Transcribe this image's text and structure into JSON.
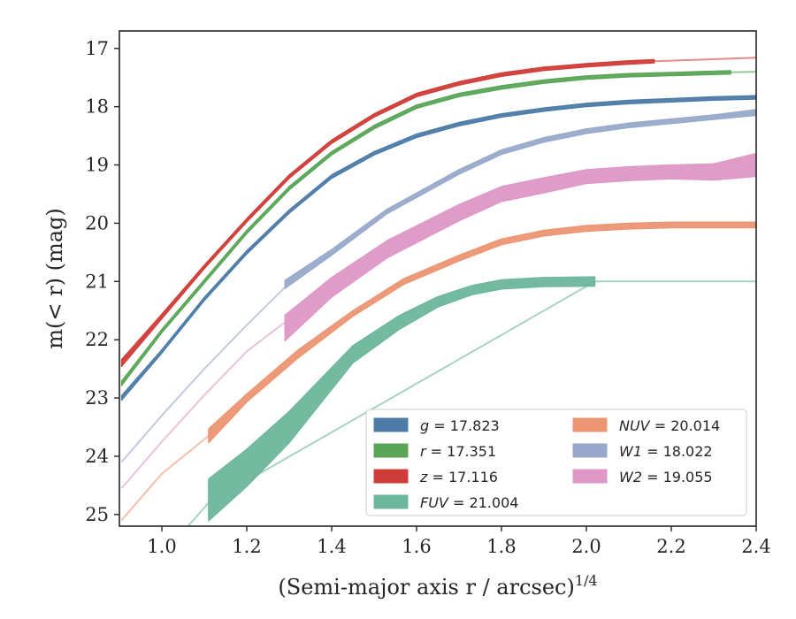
{
  "chart_data": {
    "type": "area",
    "xlabel": "(Semi-major axis r / arcsec)",
    "xlabel_sup": "1/4",
    "ylabel": "m(< r) (mag)",
    "xlim": [
      0.9,
      2.4
    ],
    "ylim": [
      25.2,
      16.7
    ],
    "y_inverted": true,
    "grid": false,
    "legend_position": "lower-right",
    "x_ticks": [
      {
        "value": 1.0,
        "label": "1.0"
      },
      {
        "value": 1.2,
        "label": "1.2"
      },
      {
        "value": 1.4,
        "label": "1.4"
      },
      {
        "value": 1.6,
        "label": "1.6"
      },
      {
        "value": 1.8,
        "label": "1.8"
      },
      {
        "value": 2.0,
        "label": "2.0"
      },
      {
        "value": 2.2,
        "label": "2.2"
      },
      {
        "value": 2.4,
        "label": "2.4"
      }
    ],
    "y_ticks": [
      {
        "value": 17,
        "label": "17"
      },
      {
        "value": 18,
        "label": "18"
      },
      {
        "value": 19,
        "label": "19"
      },
      {
        "value": 20,
        "label": "20"
      },
      {
        "value": 21,
        "label": "21"
      },
      {
        "value": 22,
        "label": "22"
      },
      {
        "value": 23,
        "label": "23"
      },
      {
        "value": 24,
        "label": "24"
      },
      {
        "value": 25,
        "label": "25"
      }
    ],
    "series": [
      {
        "name": "g = 17.823",
        "band": "g",
        "legend_value": "17.823",
        "color": "#4c7ba8",
        "faint_x": [],
        "faint_y": [],
        "x": [
          0.905,
          1.0,
          1.1,
          1.2,
          1.3,
          1.4,
          1.5,
          1.6,
          1.7,
          1.8,
          1.9,
          2.0,
          2.1,
          2.2,
          2.3,
          2.4
        ],
        "y": [
          23.0,
          22.2,
          21.3,
          20.5,
          19.8,
          19.2,
          18.8,
          18.5,
          18.3,
          18.15,
          18.05,
          17.97,
          17.92,
          17.89,
          17.86,
          17.84
        ],
        "half_width": [
          0.04,
          0.03,
          0.03,
          0.03,
          0.03,
          0.03,
          0.03,
          0.03,
          0.03,
          0.03,
          0.03,
          0.03,
          0.03,
          0.03,
          0.03,
          0.03
        ]
      },
      {
        "name": "r = 17.351",
        "band": "r",
        "legend_value": "17.351",
        "color": "#5aa557",
        "faint_x": [
          2.34,
          2.4
        ],
        "faint_y": [
          17.41,
          17.4
        ],
        "x": [
          0.905,
          1.0,
          1.1,
          1.2,
          1.3,
          1.4,
          1.5,
          1.6,
          1.7,
          1.8,
          1.9,
          2.0,
          2.1,
          2.2,
          2.34
        ],
        "y": [
          22.75,
          21.85,
          21.0,
          20.15,
          19.4,
          18.8,
          18.35,
          18.0,
          17.8,
          17.67,
          17.57,
          17.5,
          17.46,
          17.44,
          17.41
        ],
        "half_width": [
          0.04,
          0.03,
          0.03,
          0.03,
          0.03,
          0.03,
          0.03,
          0.03,
          0.03,
          0.03,
          0.03,
          0.03,
          0.03,
          0.03,
          0.03
        ]
      },
      {
        "name": "z = 17.116",
        "band": "z",
        "legend_value": "17.116",
        "color": "#d03c38",
        "faint_x": [
          2.16,
          2.4
        ],
        "faint_y": [
          17.22,
          17.16
        ],
        "x": [
          0.905,
          1.0,
          1.1,
          1.2,
          1.3,
          1.4,
          1.5,
          1.6,
          1.7,
          1.8,
          1.9,
          2.0,
          2.1,
          2.16
        ],
        "y": [
          22.4,
          21.6,
          20.75,
          19.95,
          19.2,
          18.6,
          18.15,
          17.8,
          17.6,
          17.45,
          17.35,
          17.29,
          17.24,
          17.22
        ],
        "half_width": [
          0.06,
          0.04,
          0.03,
          0.03,
          0.03,
          0.03,
          0.03,
          0.03,
          0.03,
          0.03,
          0.03,
          0.03,
          0.03,
          0.03
        ]
      },
      {
        "name": "FUV = 21.004",
        "band": "FUV",
        "legend_value": "21.004",
        "color": "#6cb69c",
        "faint_x": [
          1.05,
          1.11,
          2.02,
          2.4
        ],
        "faint_y": [
          25.3,
          24.8,
          21.0,
          21.0
        ],
        "x": [
          1.11,
          1.2,
          1.3,
          1.45,
          1.56,
          1.65,
          1.73,
          1.8,
          1.9,
          2.02
        ],
        "y": [
          24.75,
          24.2,
          23.5,
          22.25,
          21.7,
          21.35,
          21.15,
          21.05,
          21.01,
          21.0
        ],
        "half_width": [
          0.36,
          0.32,
          0.27,
          0.15,
          0.12,
          0.09,
          0.08,
          0.08,
          0.08,
          0.08
        ]
      },
      {
        "name": "NUV = 20.014",
        "band": "NUV",
        "legend_value": "20.014",
        "color": "#eb9573",
        "faint_x": [
          0.905,
          1.0,
          1.11
        ],
        "faint_y": [
          25.1,
          24.3,
          23.65
        ],
        "x": [
          1.11,
          1.2,
          1.32,
          1.45,
          1.57,
          1.7,
          1.8,
          1.9,
          2.0,
          2.1,
          2.2,
          2.3,
          2.4
        ],
        "y": [
          23.65,
          23.0,
          22.25,
          21.55,
          21.0,
          20.6,
          20.32,
          20.17,
          20.09,
          20.05,
          20.03,
          20.03,
          20.03
        ],
        "half_width": [
          0.12,
          0.07,
          0.07,
          0.05,
          0.05,
          0.05,
          0.05,
          0.05,
          0.05,
          0.05,
          0.05,
          0.05,
          0.05
        ]
      },
      {
        "name": "W1 = 18.022",
        "band": "W1",
        "legend_value": "18.022",
        "color": "#97a9cb",
        "faint_x": [
          0.905,
          1.0,
          1.1,
          1.2,
          1.29
        ],
        "faint_y": [
          24.1,
          23.3,
          22.5,
          21.75,
          21.1
        ],
        "x": [
          1.29,
          1.4,
          1.53,
          1.7,
          1.8,
          1.9,
          2.0,
          2.1,
          2.2,
          2.3,
          2.4
        ],
        "y": [
          21.05,
          20.5,
          19.8,
          19.12,
          18.78,
          18.57,
          18.42,
          18.32,
          18.25,
          18.18,
          18.1
        ],
        "half_width": [
          0.07,
          0.05,
          0.04,
          0.04,
          0.04,
          0.04,
          0.04,
          0.04,
          0.04,
          0.04,
          0.05
        ]
      },
      {
        "name": "W2 = 19.055",
        "band": "W2",
        "legend_value": "19.055",
        "color": "#de97c6",
        "faint_x": [
          0.905,
          1.0,
          1.1,
          1.2,
          1.29
        ],
        "faint_y": [
          24.55,
          23.75,
          22.95,
          22.2,
          21.7
        ],
        "x": [
          1.29,
          1.4,
          1.53,
          1.7,
          1.8,
          1.9,
          2.0,
          2.1,
          2.2,
          2.3,
          2.4
        ],
        "y": [
          21.8,
          21.1,
          20.45,
          19.82,
          19.5,
          19.35,
          19.2,
          19.15,
          19.12,
          19.12,
          19.0
        ],
        "half_width": [
          0.22,
          0.17,
          0.15,
          0.14,
          0.13,
          0.13,
          0.12,
          0.12,
          0.12,
          0.14,
          0.2
        ]
      }
    ]
  }
}
